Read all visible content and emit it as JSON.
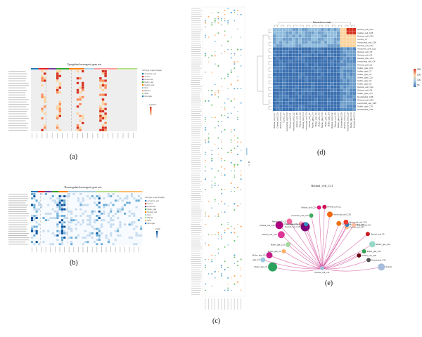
{
  "figure": {
    "panel_labels": [
      "(a)",
      "(b)",
      "(c)",
      "(d)",
      "(e)"
    ]
  },
  "panel_a": {
    "title": "Upregulated neurogenic gene sets",
    "legend_title": "log2fcsfc",
    "legend_group_title": "Cell type (major lineage)",
    "legend_items": [
      "Amacrine_cell",
      "Cones",
      "Horizontal",
      "Muller_glia",
      "Retinal_cell",
      "Rod",
      "Bipolar",
      "RPE",
      "Microglia"
    ],
    "colors": {
      "high": "#d7301f",
      "mid": "#fc8d59",
      "low": "#fdd49e",
      "bg": "#eeeeee"
    }
  },
  "panel_b": {
    "title": "Downregulated neurogenic gene sets",
    "legend_title": "log2fc",
    "legend_group_title": "Cell type (major lineage)",
    "colors": {
      "high": "#08519c",
      "mid": "#6baed6",
      "low": "#c6dbef",
      "bg": "#f7fbff"
    }
  },
  "panel_c": {
    "colors": {
      "dot1": "#6baed6",
      "dot2": "#fdae6b",
      "dot3": "#74c476"
    }
  },
  "panel_d": {
    "title": "Interaction counts",
    "row_labels": [
      "Retinal_cell_C27",
      "Goblet_cell_C26",
      "Retinal_cell_C16",
      "Cones_C7",
      "Horizontal_cell_C36",
      "Retinal_cell_C11",
      "Amacrine_cell_C22",
      "Retinal_cell_C5",
      "Retinal_cell_C3",
      "Retinal_cell_C14",
      "Horizontal_cell_C4",
      "Retinal_cell_C1",
      "Muller_glia_C24",
      "Muller_glia_C2",
      "Muller_glia_C3",
      "Muller_glia_C15",
      "Muller_glia_C6",
      "Muller_glia_C9",
      "Retinal_cell_C12",
      "Retinal_cell_C8",
      "Muller_glia_C17",
      "Endothelial_C28",
      "Retinal_cell_C13",
      "Horizontal_cell_C20",
      "Muller_glia_C19",
      "Endothelial_C34"
    ],
    "legend_ticks": [
      "200",
      "150",
      "100",
      "50"
    ],
    "colors": {
      "low": "#3a6fb0",
      "mid": "#a6cbe3",
      "high": "#fdd49e",
      "top": "#d7301f"
    }
  },
  "panel_e": {
    "title": "Retinal_cell_C11",
    "source_label": "Retinal_cell_C11",
    "targets": [
      {
        "label": "Muller_glia_C3",
        "color": "#2ca25f",
        "r": 6.5
      },
      {
        "label": "Muller_glia_C6",
        "color": "#9ecae1",
        "r": 3.5
      },
      {
        "label": "Muller_glia_C9",
        "color": "#c51b8a",
        "r": 4.5
      },
      {
        "label": "Muller_glia_C2",
        "color": "#fdae6b",
        "r": 3
      },
      {
        "label": "Muller_glia_C15",
        "color": "#a1d99b",
        "r": 3.5
      },
      {
        "label": "Retinal_cell_C12",
        "color": "#dd3497",
        "r": 5
      },
      {
        "label": "Retinal_cell_C13",
        "color": "#ae017e",
        "r": 5.5
      },
      {
        "label": "Retinal_cell_C5",
        "color": "#f768a1",
        "r": 4
      },
      {
        "label": "Muller_glia_C24",
        "color": "#fa9fb5",
        "r": 3.5
      },
      {
        "label": "Retinal_cell_C16",
        "color": "#7a0177",
        "r": 6.5
      },
      {
        "label": "Horizontal_cell_C4",
        "color": "#3690c0",
        "r": 3
      },
      {
        "label": "Amacrine_cell_C22",
        "color": "#41ab5d",
        "r": 3
      },
      {
        "label": "Retinal_cell_C14",
        "color": "#dd1c77",
        "r": 3
      },
      {
        "label": "Retinal_cell_C1",
        "color": "#ce1256",
        "r": 3
      },
      {
        "label": "Horizontal_cell_C36",
        "color": "#f16913",
        "r": 4
      },
      {
        "label": "Cones_C7",
        "color": "#ec7014",
        "r": 3.5
      },
      {
        "label": "Retinal_cell_C27",
        "color": "#fdbb84",
        "r": 3
      },
      {
        "label": "Endothelial_C28",
        "color": "#3182bd",
        "r": 3
      },
      {
        "label": "Horizontal_cell_C20",
        "color": "#ef3b2c",
        "r": 3.5
      },
      {
        "label": "Retinal_cell_C8",
        "color": "#fcbba1",
        "r": 3
      },
      {
        "label": "Retinal_cell_C3",
        "color": "#cb181d",
        "r": 3
      },
      {
        "label": "Muller_glia_C19",
        "color": "#99d8c9",
        "r": 4.5
      },
      {
        "label": "Muller_glia_C17",
        "color": "#31a354",
        "r": 3
      },
      {
        "label": "Goblet_cell_C26",
        "color": "#67000d",
        "r": 3
      },
      {
        "label": "Endothelial_C34",
        "color": "#525252",
        "r": 3
      },
      {
        "label": "Retinal_cell_C11",
        "color": "#a6bddb",
        "r": 5
      }
    ],
    "edge_color": "#c51b7d"
  }
}
